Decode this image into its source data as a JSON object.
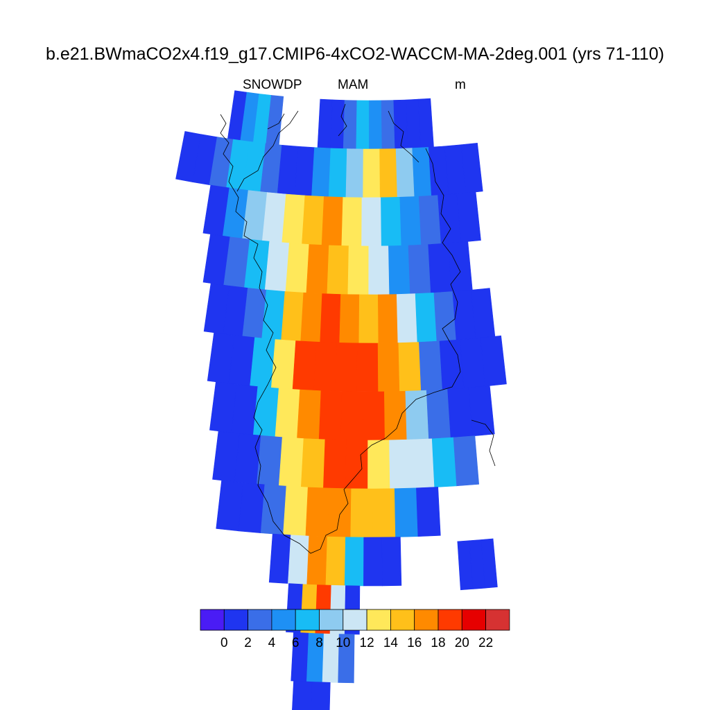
{
  "title": "b.e21.BWmaCO2x4.f19_g17.CMIP6-4xCO2-WACCM-MA-2deg.001 (yrs 71-110)",
  "variable": "SNOWDP",
  "season": "MAM",
  "units": "m",
  "colors": {
    "palette": [
      "#4a1cf5",
      "#1f35f0",
      "#3a6ee8",
      "#1e90f5",
      "#18bcf5",
      "#8ecbf0",
      "#cce6f5",
      "#ffe85a",
      "#ffc01a",
      "#ff8a00",
      "#ff3a00",
      "#e60000",
      "#d63232"
    ],
    "missing": "#ffffff",
    "coastline": "#000000"
  },
  "chart_data": {
    "type": "heatmap",
    "title": "b.e21.BWmaCO2x4.f19_g17.CMIP6-4xCO2-WACCM-MA-2deg.001 (yrs 71-110)",
    "variable": "SNOWDP",
    "season": "MAM",
    "units": "m",
    "colorbar": {
      "levels": [
        0,
        2,
        4,
        6,
        8,
        10,
        12,
        14,
        16,
        18,
        20,
        22
      ],
      "tick_labels": [
        "0",
        "2",
        "4",
        "6",
        "8",
        "10",
        "12",
        "14",
        "16",
        "18",
        "20",
        "22"
      ],
      "placement": "bottom"
    },
    "grid_rows": [
      {
        "band": 1,
        "values": [
          null,
          1,
          5,
          7,
          3,
          null,
          null,
          null,
          1,
          1,
          3,
          7,
          5,
          3,
          1,
          1,
          1
        ]
      },
      {
        "band": 2,
        "values": [
          1,
          1,
          3,
          6,
          7,
          3,
          1,
          1,
          5,
          7,
          9,
          13,
          14,
          9,
          5,
          1,
          1,
          1
        ]
      },
      {
        "band": 3,
        "values": [
          1,
          5,
          9,
          11,
          12,
          14,
          16,
          13,
          11,
          7,
          5,
          3,
          1,
          1
        ]
      },
      {
        "band": 4,
        "values": [
          1,
          3,
          7,
          11,
          13,
          17,
          15,
          13,
          11,
          5,
          3,
          1,
          1
        ]
      },
      {
        "band": 5,
        "values": [
          1,
          1,
          3,
          7,
          15,
          17,
          19,
          17,
          15,
          17,
          11,
          7,
          3,
          1,
          1
        ]
      },
      {
        "band": 6,
        "values": [
          1,
          1,
          7,
          13,
          19,
          19,
          19,
          19,
          17,
          15,
          3,
          1,
          1,
          1
        ]
      },
      {
        "band": 7,
        "values": [
          1,
          1,
          7,
          13,
          17,
          19,
          19,
          19,
          17,
          9,
          3,
          1,
          1
        ]
      },
      {
        "band": 8,
        "values": [
          1,
          1,
          3,
          13,
          15,
          19,
          19,
          13,
          11,
          11,
          7,
          3
        ]
      },
      {
        "band": 9,
        "values": [
          1,
          1,
          3,
          13,
          17,
          17,
          15,
          15,
          5,
          1
        ]
      },
      {
        "band": 10,
        "values": [
          1,
          11,
          17,
          15,
          7,
          1,
          1
        ]
      },
      {
        "band": 11,
        "values": [
          1,
          15,
          19,
          11,
          1
        ]
      },
      {
        "band": 12,
        "values": [
          1,
          5,
          11,
          3
        ]
      },
      {
        "band": 13,
        "values": [
          1,
          1
        ]
      },
      {
        "band": "east-fragment",
        "values": [
          1,
          1,
          1
        ]
      }
    ]
  }
}
